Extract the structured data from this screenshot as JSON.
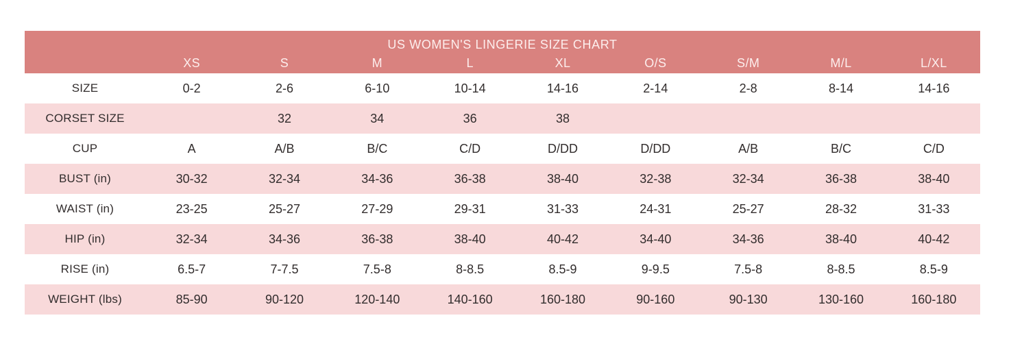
{
  "colors": {
    "header_bg": "#d9827f",
    "header_text": "#fdeeed",
    "row_alt_bg": "#f8d9da",
    "row_bg": "#ffffff",
    "body_text": "#322d2d"
  },
  "chart_data": {
    "type": "table",
    "title": "US WOMEN'S LINGERIE SIZE CHART",
    "columns": [
      "",
      "XS",
      "S",
      "M",
      "L",
      "XL",
      "O/S",
      "S/M",
      "M/L",
      "L/XL"
    ],
    "rows": [
      {
        "label": "SIZE",
        "values": [
          "0-2",
          "2-6",
          "6-10",
          "10-14",
          "14-16",
          "2-14",
          "2-8",
          "8-14",
          "14-16"
        ]
      },
      {
        "label": "CORSET SIZE",
        "values": [
          "",
          "32",
          "34",
          "36",
          "38",
          "",
          "",
          "",
          ""
        ]
      },
      {
        "label": "CUP",
        "values": [
          "A",
          "A/B",
          "B/C",
          "C/D",
          "D/DD",
          "D/DD",
          "A/B",
          "B/C",
          "C/D"
        ]
      },
      {
        "label": "BUST (in)",
        "values": [
          "30-32",
          "32-34",
          "34-36",
          "36-38",
          "38-40",
          "32-38",
          "32-34",
          "36-38",
          "38-40"
        ]
      },
      {
        "label": "WAIST (in)",
        "values": [
          "23-25",
          "25-27",
          "27-29",
          "29-31",
          "31-33",
          "24-31",
          "25-27",
          "28-32",
          "31-33"
        ]
      },
      {
        "label": "HIP (in)",
        "values": [
          "32-34",
          "34-36",
          "36-38",
          "38-40",
          "40-42",
          "34-40",
          "34-36",
          "38-40",
          "40-42"
        ]
      },
      {
        "label": "RISE (in)",
        "values": [
          "6.5-7",
          "7-7.5",
          "7.5-8",
          "8-8.5",
          "8.5-9",
          "9-9.5",
          "7.5-8",
          "8-8.5",
          "8.5-9"
        ]
      },
      {
        "label": "WEIGHT (lbs)",
        "values": [
          "85-90",
          "90-120",
          "120-140",
          "140-160",
          "160-180",
          "90-160",
          "90-130",
          "130-160",
          "160-180"
        ]
      }
    ]
  }
}
